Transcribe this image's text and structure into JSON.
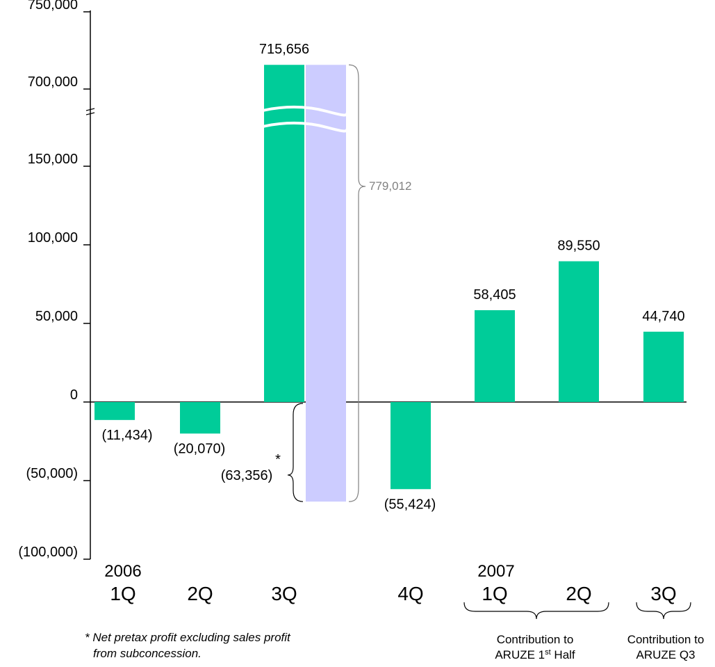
{
  "chart_data": {
    "type": "bar",
    "categories": [
      "1Q",
      "2Q",
      "3Q",
      "4Q",
      "1Q",
      "2Q",
      "3Q"
    ],
    "category_groups": [
      {
        "year": "2006",
        "start": 0
      },
      {
        "year": "2007",
        "start": 4
      }
    ],
    "values": [
      -11434,
      -20070,
      715656,
      -55424,
      58405,
      89550,
      44740
    ],
    "value_labels": [
      "(11,434)",
      "(20,070)",
      "715,656",
      "(55,424)",
      "58,405",
      "89,550",
      "44,740"
    ],
    "adjustment": {
      "category": "3Q",
      "value": -63356,
      "label": "(63,356)",
      "marker": "*",
      "total_span_label": "779,012"
    },
    "y_ticks": [
      "750,000",
      "700,000",
      "150,000",
      "100,000",
      "50,000",
      "0",
      "(50,000)",
      "(100,000)"
    ],
    "y_tick_values": [
      750000,
      700000,
      150000,
      100000,
      50000,
      0,
      -50000,
      -100000
    ],
    "axis_break": {
      "from": 150000,
      "to": 700000
    },
    "ylim": [
      -100000,
      750000
    ],
    "groupings": [
      {
        "categories": [
          "1Q",
          "2Q"
        ],
        "year": "2007",
        "label_lines": [
          "Contribution to",
          "ARUZE 1",
          "st",
          " Half"
        ]
      },
      {
        "categories": [
          "3Q"
        ],
        "year": "2007",
        "label_lines": [
          "Contribution to",
          "ARUZE Q3"
        ]
      }
    ],
    "footnote_lines": [
      "* Net pretax profit excluding sales profit",
      "from subconcession."
    ],
    "colors": {
      "bars": "#00CC99",
      "adjustment": "#CCCCFF",
      "total_label": "#808080"
    },
    "grid": false,
    "legend": "none"
  }
}
